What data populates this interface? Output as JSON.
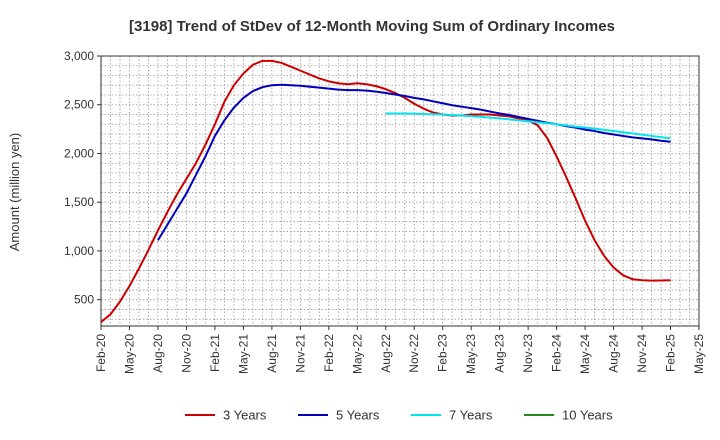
{
  "chart_data": {
    "type": "line",
    "title": "[3198]  Trend of StDev of 12-Month Moving Sum of Ordinary Incomes",
    "ylabel": "Amount (million yen)",
    "xlabel": "",
    "ylim": [
      230,
      3000
    ],
    "y_ticks": [
      500,
      1000,
      1500,
      2000,
      2500,
      3000
    ],
    "y_tick_labels": [
      "500",
      "1,000",
      "1,500",
      "2,000",
      "2,500",
      "3,000"
    ],
    "x_ticks": [
      "2020-02",
      "2020-05",
      "2020-08",
      "2020-11",
      "2021-02",
      "2021-05",
      "2021-08",
      "2021-11",
      "2022-02",
      "2022-05",
      "2022-08",
      "2022-11",
      "2023-02",
      "2023-05",
      "2023-08",
      "2023-11",
      "2024-02",
      "2024-05",
      "2024-08",
      "2024-11",
      "2025-02",
      "2025-05"
    ],
    "x_tick_labels": [
      "Feb-20",
      "May-20",
      "Aug-20",
      "Nov-20",
      "Feb-21",
      "May-21",
      "Aug-21",
      "Nov-21",
      "Feb-22",
      "May-22",
      "Aug-22",
      "Nov-22",
      "Feb-23",
      "May-23",
      "Aug-23",
      "Nov-23",
      "Feb-24",
      "May-24",
      "Aug-24",
      "Nov-24",
      "Feb-25",
      "May-25"
    ],
    "grid": true,
    "legend_position": "bottom",
    "series": [
      {
        "name": "3 Years",
        "color": "#cc0000",
        "points": [
          [
            "2020-02",
            270
          ],
          [
            "2020-03",
            350
          ],
          [
            "2020-04",
            480
          ],
          [
            "2020-05",
            640
          ],
          [
            "2020-06",
            820
          ],
          [
            "2020-07",
            1010
          ],
          [
            "2020-08",
            1210
          ],
          [
            "2020-09",
            1400
          ],
          [
            "2020-10",
            1580
          ],
          [
            "2020-11",
            1740
          ],
          [
            "2020-12",
            1900
          ],
          [
            "2021-01",
            2090
          ],
          [
            "2021-02",
            2300
          ],
          [
            "2021-03",
            2530
          ],
          [
            "2021-04",
            2700
          ],
          [
            "2021-05",
            2820
          ],
          [
            "2021-06",
            2910
          ],
          [
            "2021-07",
            2950
          ],
          [
            "2021-08",
            2950
          ],
          [
            "2021-09",
            2930
          ],
          [
            "2021-10",
            2890
          ],
          [
            "2021-11",
            2850
          ],
          [
            "2021-12",
            2810
          ],
          [
            "2022-01",
            2770
          ],
          [
            "2022-02",
            2740
          ],
          [
            "2022-03",
            2720
          ],
          [
            "2022-04",
            2710
          ],
          [
            "2022-05",
            2720
          ],
          [
            "2022-06",
            2710
          ],
          [
            "2022-07",
            2690
          ],
          [
            "2022-08",
            2660
          ],
          [
            "2022-09",
            2620
          ],
          [
            "2022-10",
            2570
          ],
          [
            "2022-11",
            2510
          ],
          [
            "2022-12",
            2460
          ],
          [
            "2023-01",
            2420
          ],
          [
            "2023-02",
            2400
          ],
          [
            "2023-03",
            2390
          ],
          [
            "2023-04",
            2390
          ],
          [
            "2023-05",
            2400
          ],
          [
            "2023-06",
            2400
          ],
          [
            "2023-07",
            2400
          ],
          [
            "2023-08",
            2390
          ],
          [
            "2023-09",
            2380
          ],
          [
            "2023-10",
            2360
          ],
          [
            "2023-11",
            2340
          ],
          [
            "2023-12",
            2290
          ],
          [
            "2024-01",
            2160
          ],
          [
            "2024-02",
            1970
          ],
          [
            "2024-03",
            1760
          ],
          [
            "2024-04",
            1540
          ],
          [
            "2024-05",
            1310
          ],
          [
            "2024-06",
            1110
          ],
          [
            "2024-07",
            950
          ],
          [
            "2024-08",
            830
          ],
          [
            "2024-09",
            750
          ],
          [
            "2024-10",
            710
          ],
          [
            "2024-11",
            700
          ],
          [
            "2024-12",
            695
          ],
          [
            "2025-01",
            697
          ],
          [
            "2025-02",
            700
          ]
        ]
      },
      {
        "name": "5 Years",
        "color": "#0000bb",
        "points": [
          [
            "2020-08",
            1110
          ],
          [
            "2020-09",
            1270
          ],
          [
            "2020-10",
            1430
          ],
          [
            "2020-11",
            1590
          ],
          [
            "2020-12",
            1780
          ],
          [
            "2021-01",
            1970
          ],
          [
            "2021-02",
            2180
          ],
          [
            "2021-03",
            2340
          ],
          [
            "2021-04",
            2470
          ],
          [
            "2021-05",
            2570
          ],
          [
            "2021-06",
            2640
          ],
          [
            "2021-07",
            2680
          ],
          [
            "2021-08",
            2700
          ],
          [
            "2021-09",
            2705
          ],
          [
            "2021-10",
            2700
          ],
          [
            "2021-11",
            2695
          ],
          [
            "2021-12",
            2685
          ],
          [
            "2022-01",
            2675
          ],
          [
            "2022-02",
            2665
          ],
          [
            "2022-03",
            2655
          ],
          [
            "2022-04",
            2650
          ],
          [
            "2022-05",
            2650
          ],
          [
            "2022-06",
            2645
          ],
          [
            "2022-07",
            2635
          ],
          [
            "2022-08",
            2620
          ],
          [
            "2022-09",
            2605
          ],
          [
            "2022-10",
            2590
          ],
          [
            "2022-11",
            2570
          ],
          [
            "2022-12",
            2555
          ],
          [
            "2023-01",
            2535
          ],
          [
            "2023-02",
            2515
          ],
          [
            "2023-03",
            2495
          ],
          [
            "2023-04",
            2480
          ],
          [
            "2023-05",
            2465
          ],
          [
            "2023-06",
            2450
          ],
          [
            "2023-07",
            2430
          ],
          [
            "2023-08",
            2410
          ],
          [
            "2023-09",
            2395
          ],
          [
            "2023-10",
            2375
          ],
          [
            "2023-11",
            2355
          ],
          [
            "2023-12",
            2335
          ],
          [
            "2024-01",
            2315
          ],
          [
            "2024-02",
            2300
          ],
          [
            "2024-03",
            2280
          ],
          [
            "2024-04",
            2265
          ],
          [
            "2024-05",
            2245
          ],
          [
            "2024-06",
            2230
          ],
          [
            "2024-07",
            2210
          ],
          [
            "2024-08",
            2195
          ],
          [
            "2024-09",
            2180
          ],
          [
            "2024-10",
            2165
          ],
          [
            "2024-11",
            2155
          ],
          [
            "2024-12",
            2145
          ],
          [
            "2025-01",
            2130
          ],
          [
            "2025-02",
            2120
          ]
        ]
      },
      {
        "name": "7 Years",
        "color": "#00e5ee",
        "points": [
          [
            "2022-08",
            2410
          ],
          [
            "2022-10",
            2410
          ],
          [
            "2022-12",
            2405
          ],
          [
            "2023-02",
            2400
          ],
          [
            "2023-04",
            2390
          ],
          [
            "2023-06",
            2375
          ],
          [
            "2023-08",
            2360
          ],
          [
            "2023-10",
            2340
          ],
          [
            "2023-12",
            2320
          ],
          [
            "2024-02",
            2300
          ],
          [
            "2024-04",
            2275
          ],
          [
            "2024-06",
            2255
          ],
          [
            "2024-08",
            2230
          ],
          [
            "2024-10",
            2205
          ],
          [
            "2024-12",
            2180
          ],
          [
            "2025-02",
            2155
          ]
        ]
      },
      {
        "name": "10 Years",
        "color": "#228b22",
        "points": []
      }
    ]
  }
}
